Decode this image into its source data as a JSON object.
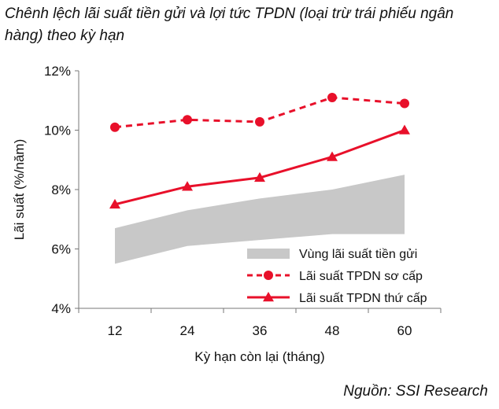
{
  "title": "Chênh lệch lãi suất tiền gửi và lợi tức TPDN (loại trừ trái phiếu ngân hàng) theo kỳ hạn",
  "source": "Nguồn: SSI Research",
  "chart_data": {
    "type": "line",
    "categories": [
      "12",
      "24",
      "36",
      "48",
      "60"
    ],
    "xlabel": "Kỳ hạn còn lại (tháng)",
    "ylabel": "Lãi suất (%/năm)",
    "ylim": [
      4,
      12
    ],
    "yticks": [
      4,
      6,
      8,
      10,
      12
    ],
    "ytick_labels": [
      "4%",
      "6%",
      "8%",
      "10%",
      "12%"
    ],
    "grid": false,
    "legend_position": "bottom-right",
    "band": {
      "name": "Vùng lãi suất tiền gửi",
      "lower": [
        5.5,
        6.1,
        6.3,
        6.5,
        6.5
      ],
      "upper": [
        6.7,
        7.3,
        7.7,
        8.0,
        8.5
      ],
      "color": "#c8c8c8"
    },
    "series": [
      {
        "name": "Lãi suất TPDN sơ cấp",
        "values": [
          10.1,
          10.35,
          10.28,
          11.1,
          10.9
        ],
        "color": "#e8102a",
        "style": "dashed",
        "marker": "circle"
      },
      {
        "name": "Lãi suất TPDN thứ cấp",
        "values": [
          7.5,
          8.1,
          8.4,
          9.1,
          10.0
        ],
        "color": "#e8102a",
        "style": "solid",
        "marker": "triangle"
      }
    ]
  }
}
